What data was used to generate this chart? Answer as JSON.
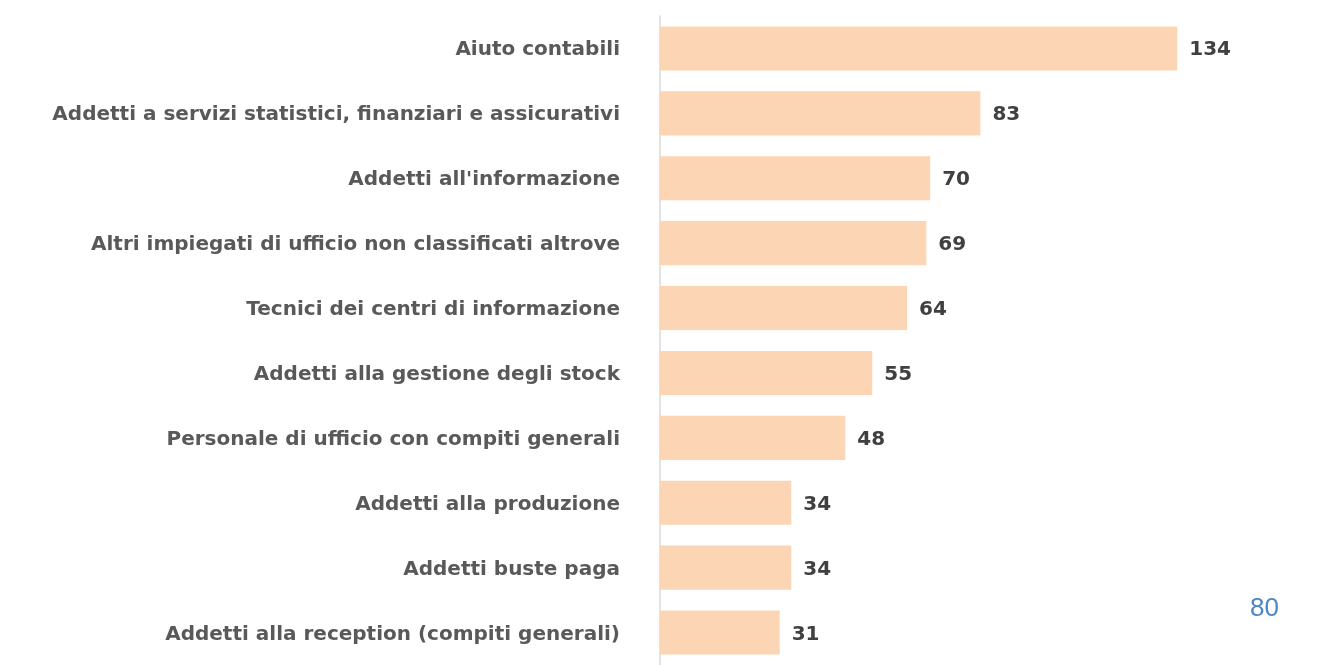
{
  "chart_data": {
    "type": "bar",
    "orientation": "horizontal",
    "categories": [
      "Aiuto contabili",
      "Addetti a servizi statistici, finanziari e assicurativi",
      "Addetti all'informazione",
      "Altri impiegati di ufficio non classificati altrove",
      "Tecnici dei centri di informazione",
      "Addetti alla gestione degli stock",
      "Personale di ufficio con compiti generali",
      "Addetti alla produzione",
      "Addetti buste paga",
      "Addetti alla reception (compiti generali)"
    ],
    "values": [
      134,
      83,
      70,
      69,
      64,
      55,
      48,
      34,
      34,
      31
    ],
    "color": "#fcd5b4",
    "data_labels": true,
    "annotations": [
      "80"
    ]
  }
}
